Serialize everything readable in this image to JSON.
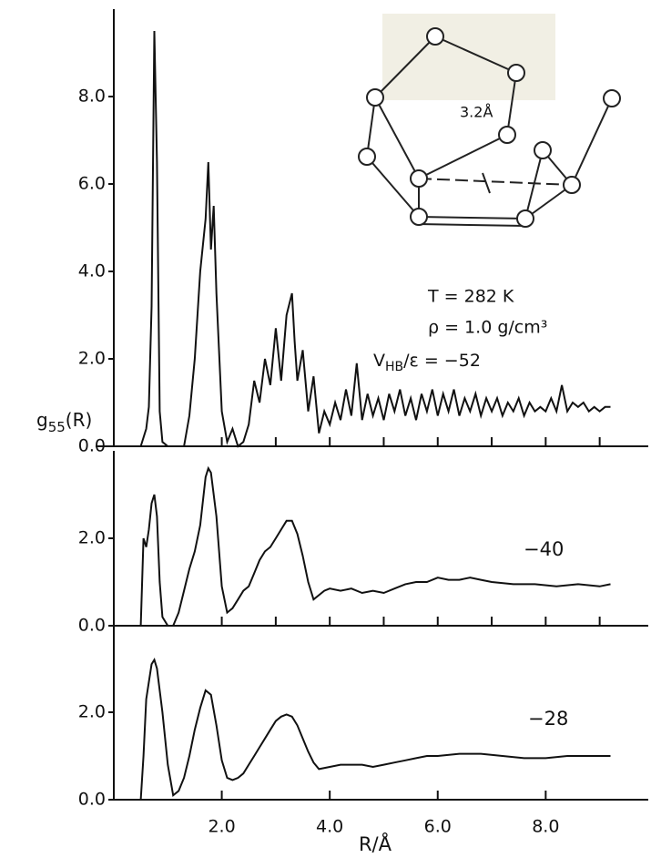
{
  "chart_data": [
    {
      "type": "line",
      "ylabel": {
        "text": "g",
        "sub": "55",
        "tail": "(R)"
      },
      "inset_label": "3.2Å",
      "annotations": [
        "T = 282 K",
        "ρ = 1.0 g/cm³"
      ],
      "curve_label": {
        "text": "V",
        "sub": "HB",
        "tail": "/ε = −52"
      },
      "xlim": [
        0,
        9.9
      ],
      "ylim": [
        0,
        10
      ],
      "xticks": [
        2,
        3,
        4,
        5,
        6,
        7,
        8,
        9
      ],
      "xtick_labels": false,
      "yticks": [
        {
          "value": 0,
          "label": "0.0"
        },
        {
          "value": 2,
          "label": "2.0"
        },
        {
          "value": 4,
          "label": "4.0"
        },
        {
          "value": 6,
          "label": "6.0"
        },
        {
          "value": 8,
          "label": "8.0"
        }
      ],
      "x": [
        0.5,
        0.6,
        0.65,
        0.7,
        0.75,
        0.8,
        0.85,
        0.9,
        1.0,
        1.3,
        1.4,
        1.5,
        1.6,
        1.7,
        1.75,
        1.8,
        1.85,
        1.9,
        2.0,
        2.1,
        2.2,
        2.3,
        2.4,
        2.5,
        2.6,
        2.7,
        2.8,
        2.9,
        3.0,
        3.1,
        3.2,
        3.3,
        3.35,
        3.4,
        3.5,
        3.6,
        3.7,
        3.8,
        3.9,
        4.0,
        4.1,
        4.2,
        4.3,
        4.4,
        4.5,
        4.6,
        4.7,
        4.8,
        4.9,
        5.0,
        5.1,
        5.2,
        5.3,
        5.4,
        5.5,
        5.6,
        5.7,
        5.8,
        5.9,
        6.0,
        6.1,
        6.2,
        6.3,
        6.4,
        6.5,
        6.6,
        6.7,
        6.8,
        6.9,
        7.0,
        7.1,
        7.2,
        7.3,
        7.4,
        7.5,
        7.6,
        7.7,
        7.8,
        7.9,
        8.0,
        8.1,
        8.2,
        8.3,
        8.4,
        8.5,
        8.6,
        8.7,
        8.8,
        8.9,
        9.0,
        9.1,
        9.2
      ],
      "series": [
        {
          "color": "#111111",
          "values": [
            0,
            0.4,
            0.9,
            3.2,
            9.5,
            6.5,
            0.8,
            0.1,
            0,
            0,
            0.7,
            2.0,
            4.0,
            5.2,
            6.5,
            4.5,
            5.5,
            3.5,
            0.8,
            0.1,
            0.4,
            0,
            0.1,
            0.5,
            1.5,
            1.0,
            2.0,
            1.4,
            2.7,
            1.5,
            3.0,
            3.5,
            2.4,
            1.5,
            2.2,
            0.8,
            1.6,
            0.3,
            0.8,
            0.5,
            1.0,
            0.6,
            1.3,
            0.7,
            1.9,
            0.6,
            1.2,
            0.7,
            1.1,
            0.6,
            1.2,
            0.8,
            1.3,
            0.7,
            1.1,
            0.6,
            1.2,
            0.8,
            1.3,
            0.7,
            1.2,
            0.8,
            1.3,
            0.7,
            1.1,
            0.8,
            1.2,
            0.7,
            1.1,
            0.8,
            1.1,
            0.7,
            1.0,
            0.8,
            1.1,
            0.7,
            1.0,
            0.8,
            0.9,
            0.8,
            1.1,
            0.8,
            1.4,
            0.8,
            1.0,
            0.9,
            1.0,
            0.8,
            0.9,
            0.8,
            0.9,
            0.9
          ]
        }
      ]
    },
    {
      "type": "line",
      "curve_label": "−40",
      "xlim": [
        0,
        9.9
      ],
      "ylim": [
        0,
        4
      ],
      "xticks": [
        2,
        3,
        4,
        5,
        6,
        7,
        8,
        9
      ],
      "xtick_labels": false,
      "yticks": [
        {
          "value": 0,
          "label": "0.0"
        },
        {
          "value": 2,
          "label": "2.0"
        }
      ],
      "x": [
        0.5,
        0.55,
        0.6,
        0.65,
        0.7,
        0.75,
        0.8,
        0.85,
        0.9,
        1.0,
        1.1,
        1.2,
        1.3,
        1.4,
        1.5,
        1.6,
        1.7,
        1.75,
        1.8,
        1.9,
        2.0,
        2.1,
        2.2,
        2.3,
        2.4,
        2.5,
        2.6,
        2.7,
        2.8,
        2.9,
        3.0,
        3.1,
        3.2,
        3.3,
        3.4,
        3.5,
        3.6,
        3.7,
        3.8,
        3.9,
        4.0,
        4.2,
        4.4,
        4.6,
        4.8,
        5.0,
        5.2,
        5.4,
        5.6,
        5.8,
        6.0,
        6.2,
        6.4,
        6.6,
        6.8,
        7.0,
        7.4,
        7.8,
        8.2,
        8.6,
        9.0,
        9.2
      ],
      "series": [
        {
          "color": "#111111",
          "values": [
            0,
            2.0,
            1.8,
            2.2,
            2.8,
            3.0,
            2.5,
            1.0,
            0.2,
            0,
            0,
            0.3,
            0.8,
            1.3,
            1.7,
            2.3,
            3.4,
            3.6,
            3.5,
            2.5,
            0.9,
            0.3,
            0.4,
            0.6,
            0.8,
            0.9,
            1.2,
            1.5,
            1.7,
            1.8,
            2.0,
            2.2,
            2.4,
            2.4,
            2.1,
            1.6,
            1.0,
            0.6,
            0.7,
            0.8,
            0.85,
            0.8,
            0.85,
            0.75,
            0.8,
            0.75,
            0.85,
            0.95,
            1.0,
            1.0,
            1.1,
            1.05,
            1.05,
            1.1,
            1.05,
            1.0,
            0.95,
            0.95,
            0.9,
            0.95,
            0.9,
            0.95
          ]
        }
      ]
    },
    {
      "type": "line",
      "curve_label": "−28",
      "xlabel": "R/Å",
      "xlim": [
        0,
        9.9
      ],
      "ylim": [
        0,
        4
      ],
      "xticks": [
        {
          "value": 2,
          "label": "2.0"
        },
        {
          "value": 4,
          "label": "4.0"
        },
        {
          "value": 6,
          "label": "6.0"
        },
        {
          "value": 8,
          "label": "8.0"
        }
      ],
      "xtick_labels": true,
      "yticks": [
        {
          "value": 0,
          "label": "0.0"
        },
        {
          "value": 2,
          "label": "2.0"
        }
      ],
      "x": [
        0.5,
        0.55,
        0.6,
        0.7,
        0.75,
        0.8,
        0.9,
        1.0,
        1.1,
        1.2,
        1.3,
        1.4,
        1.5,
        1.6,
        1.7,
        1.8,
        1.9,
        2.0,
        2.1,
        2.2,
        2.3,
        2.4,
        2.5,
        2.6,
        2.7,
        2.8,
        2.9,
        3.0,
        3.1,
        3.2,
        3.3,
        3.4,
        3.5,
        3.6,
        3.7,
        3.8,
        4.0,
        4.2,
        4.4,
        4.6,
        4.8,
        5.0,
        5.2,
        5.4,
        5.6,
        5.8,
        6.0,
        6.4,
        6.8,
        7.2,
        7.6,
        8.0,
        8.4,
        8.8,
        9.2
      ],
      "series": [
        {
          "color": "#111111",
          "values": [
            0,
            1.0,
            2.3,
            3.1,
            3.2,
            3.0,
            2.0,
            0.8,
            0.1,
            0.2,
            0.5,
            1.0,
            1.6,
            2.1,
            2.5,
            2.4,
            1.7,
            0.9,
            0.5,
            0.45,
            0.5,
            0.6,
            0.8,
            1.0,
            1.2,
            1.4,
            1.6,
            1.8,
            1.9,
            1.95,
            1.9,
            1.7,
            1.4,
            1.1,
            0.85,
            0.7,
            0.75,
            0.8,
            0.8,
            0.8,
            0.75,
            0.8,
            0.85,
            0.9,
            0.95,
            1.0,
            1.0,
            1.05,
            1.05,
            1.0,
            0.95,
            0.95,
            1.0,
            1.0,
            1.0
          ]
        }
      ]
    }
  ]
}
